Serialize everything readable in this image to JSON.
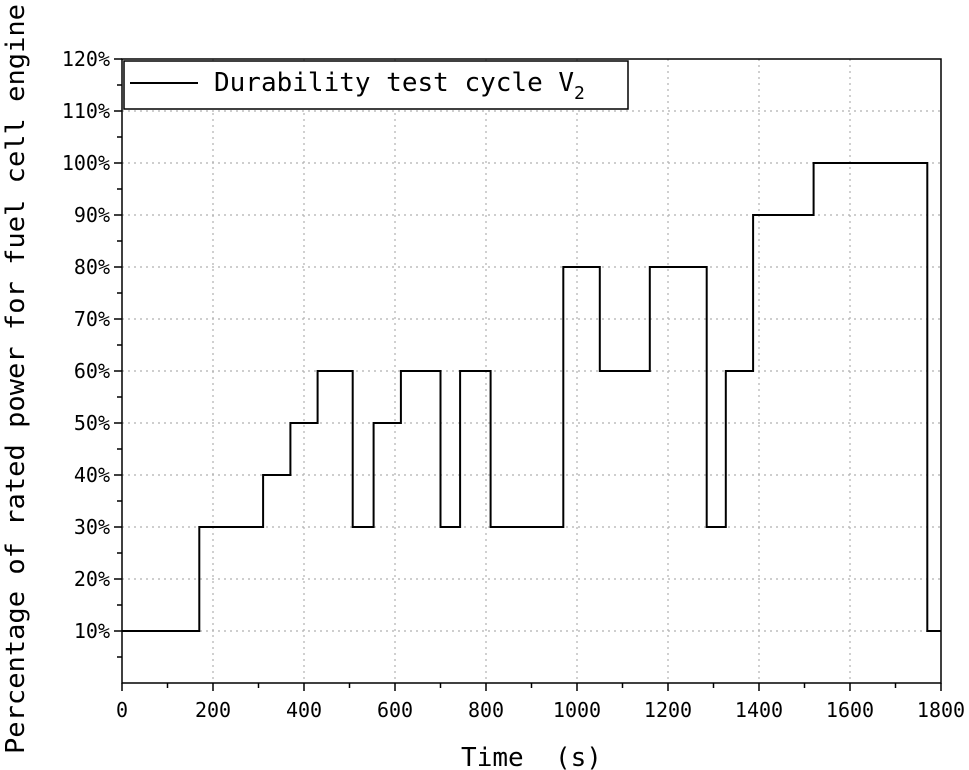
{
  "chart_data": {
    "type": "line",
    "step": true,
    "xlabel": "Time  (s)",
    "ylabel": "Percentage of rated power for fuel cell engine",
    "xlim": [
      0,
      1800
    ],
    "ylim": [
      0,
      120
    ],
    "xticks": [
      0,
      200,
      400,
      600,
      800,
      1000,
      1200,
      1400,
      1600,
      1800
    ],
    "yticks": [
      10,
      20,
      30,
      40,
      50,
      60,
      70,
      80,
      90,
      100,
      110,
      120
    ],
    "ytick_suffix": "%",
    "grid": true,
    "legend_position": "top-left",
    "series": [
      {
        "name": "Durability test cycle V",
        "name_subscript": "2",
        "color": "#000000",
        "x": [
          0,
          170,
          170,
          310,
          310,
          370,
          370,
          430,
          430,
          507,
          507,
          553,
          553,
          613,
          613,
          700,
          700,
          743,
          743,
          810,
          810,
          970,
          970,
          1050,
          1050,
          1160,
          1160,
          1285,
          1285,
          1327,
          1327,
          1387,
          1387,
          1520,
          1520,
          1770,
          1770,
          1800
        ],
        "y": [
          10,
          10,
          30,
          30,
          40,
          40,
          50,
          50,
          60,
          60,
          30,
          30,
          50,
          50,
          60,
          60,
          30,
          30,
          60,
          60,
          30,
          30,
          80,
          80,
          60,
          60,
          80,
          80,
          30,
          30,
          60,
          60,
          90,
          90,
          100,
          100,
          10,
          10
        ]
      }
    ]
  }
}
